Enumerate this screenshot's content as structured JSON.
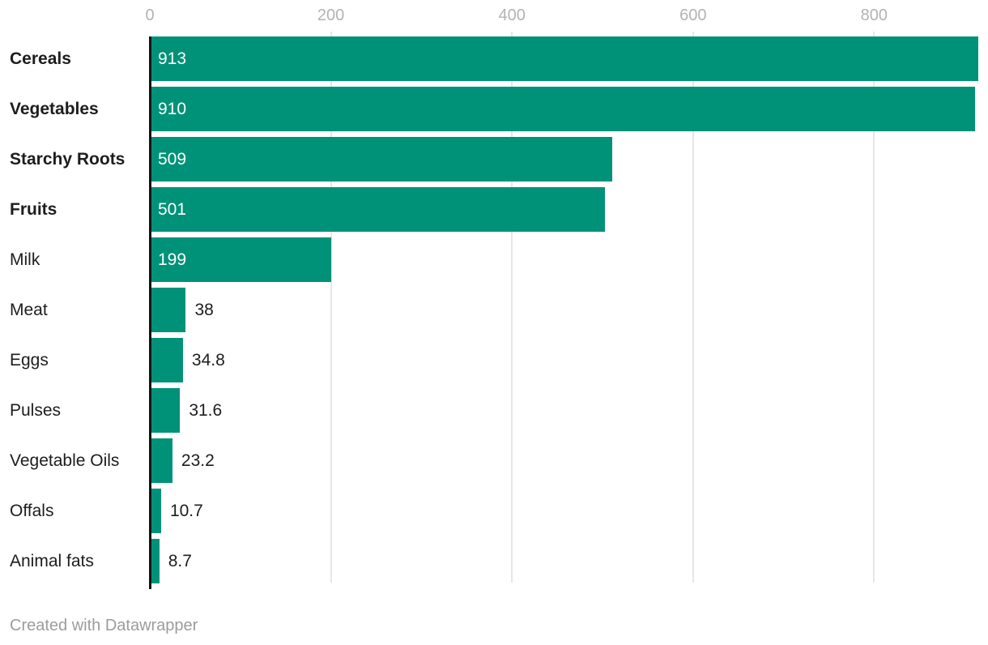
{
  "chart_data": {
    "type": "bar",
    "orientation": "horizontal",
    "title": "",
    "categories": [
      "Cereals",
      "Vegetables",
      "Starchy Roots",
      "Fruits",
      "Milk",
      "Meat",
      "Eggs",
      "Pulses",
      "Vegetable Oils",
      "Offals",
      "Animal fats"
    ],
    "values": [
      913,
      910,
      509,
      501,
      199,
      38,
      34.8,
      31.6,
      23.2,
      10.7,
      8.7
    ],
    "value_labels": [
      "913",
      "910",
      "509",
      "501",
      "199",
      "38",
      "34.8",
      "31.6",
      "23.2",
      "10.7",
      "8.7"
    ],
    "bold_flags": [
      true,
      true,
      true,
      true,
      false,
      false,
      false,
      false,
      false,
      false,
      false
    ],
    "x_ticks": [
      0,
      200,
      400,
      600,
      800
    ],
    "xlim": [
      0,
      924
    ],
    "grid": true,
    "legend": "none",
    "xlabel": "",
    "ylabel": ""
  },
  "colors": {
    "bar": "#009278",
    "axis_line": "#141414",
    "gridline": "#e6e6e6",
    "tick_label": "#b3b3b3",
    "category_label": "#1d1d1d",
    "value_inside": "#ffffff",
    "value_outside": "#1d1d1d",
    "footer_text": "#9c9c9c",
    "background": "#ffffff"
  },
  "footer": {
    "text": "Created with Datawrapper"
  }
}
